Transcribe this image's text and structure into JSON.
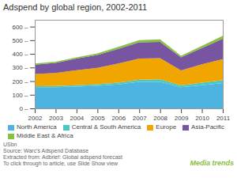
{
  "chart_data": {
    "type": "area",
    "stacked": true,
    "title": "Adspend by global region, 2002-2011",
    "x": [
      2002,
      2003,
      2004,
      2005,
      2006,
      2007,
      2008,
      2009,
      2010,
      2011
    ],
    "series": [
      {
        "name": "North America",
        "color": "#4db3e0",
        "values": [
          155,
          155,
          160,
          165,
          175,
          195,
          195,
          155,
          170,
          185
        ]
      },
      {
        "name": "Central & South America",
        "color": "#4dc8c0",
        "values": [
          8,
          9,
          10,
          12,
          14,
          16,
          18,
          14,
          18,
          22
        ]
      },
      {
        "name": "Europe",
        "color": "#f0a500",
        "values": [
          90,
          95,
          110,
          120,
          140,
          155,
          155,
          110,
          135,
          155
        ]
      },
      {
        "name": "Asia-Pacific",
        "color": "#7755a0",
        "values": [
          68,
          75,
          85,
          95,
          108,
          118,
          120,
          95,
          120,
          148
        ]
      },
      {
        "name": "Middle East & Africa",
        "color": "#88c040",
        "values": [
          8,
          9,
          10,
          12,
          14,
          16,
          18,
          12,
          16,
          22
        ]
      }
    ],
    "xlim": [
      2002,
      2011
    ],
    "xticks": [
      2002,
      2003,
      2004,
      2005,
      2006,
      2007,
      2008,
      2009,
      2010,
      2011
    ],
    "ylim": [
      0,
      650
    ],
    "yticks": [
      {
        "value": 0,
        "label": "0 –"
      },
      {
        "value": 100,
        "label": "100 –"
      },
      {
        "value": 200,
        "label": "200 –"
      },
      {
        "value": 300,
        "label": "300 –"
      },
      {
        "value": 400,
        "label": "400 –"
      },
      {
        "value": 500,
        "label": "500 –"
      },
      {
        "value": 600,
        "label": "600 –"
      }
    ],
    "grid": false,
    "legend": "bottom",
    "annotations": [
      "USbn",
      "Source: Warc's Adspend Database",
      "Extracted from: Adbrief: Global adspend forecast",
      "To click through to article, use Slide Show view",
      "Media trends"
    ]
  }
}
